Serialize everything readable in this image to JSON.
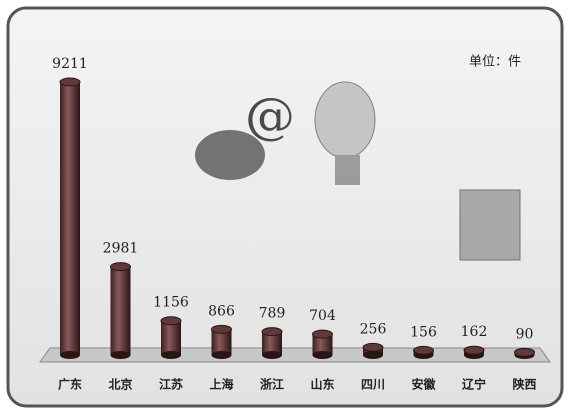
{
  "chart_data": {
    "type": "bar",
    "unit_label": "单位：件",
    "categories": [
      "广东",
      "北京",
      "江苏",
      "上海",
      "浙江",
      "山东",
      "四川",
      "安徽",
      "辽宁",
      "陕西"
    ],
    "values": [
      9211,
      2981,
      1156,
      866,
      789,
      704,
      256,
      156,
      162,
      90
    ],
    "color": "#5e3a3a"
  }
}
